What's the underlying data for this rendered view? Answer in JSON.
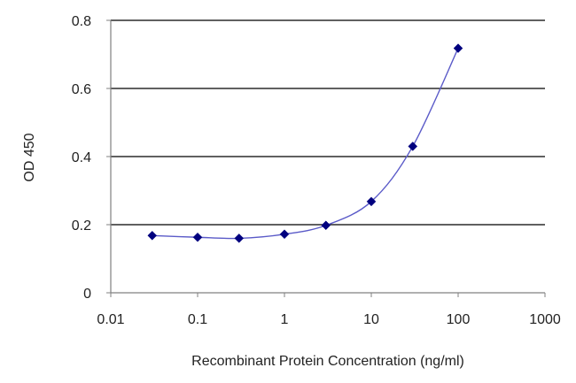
{
  "chart_data": {
    "type": "scatter",
    "title": "",
    "xlabel": "Recombinant Protein Concentration (ng/ml)",
    "ylabel": "OD 450",
    "x_scale": "log",
    "xlim": [
      0.01,
      1000
    ],
    "ylim": [
      0,
      0.8
    ],
    "x_ticks": [
      0.01,
      0.1,
      1,
      10,
      100,
      1000
    ],
    "x_tick_labels": [
      "0.01",
      "0.1",
      "1",
      "10",
      "100",
      "1000"
    ],
    "y_ticks": [
      0,
      0.2,
      0.4,
      0.6,
      0.8
    ],
    "y_tick_labels": [
      "0",
      "0.2",
      "0.4",
      "0.6",
      "0.8"
    ],
    "grid": "horizontal",
    "legend": "none",
    "series": [
      {
        "x": [
          0.03,
          0.1,
          0.3,
          1,
          3,
          10,
          30,
          100
        ],
        "y": [
          0.168,
          0.163,
          0.16,
          0.172,
          0.198,
          0.268,
          0.43,
          0.718
        ],
        "marker": "diamond",
        "fit_line": "smooth"
      }
    ],
    "colors": {
      "series": "#00007f",
      "curve": "#5a5ac8",
      "grid": "#000000",
      "axis": "#808080"
    }
  }
}
